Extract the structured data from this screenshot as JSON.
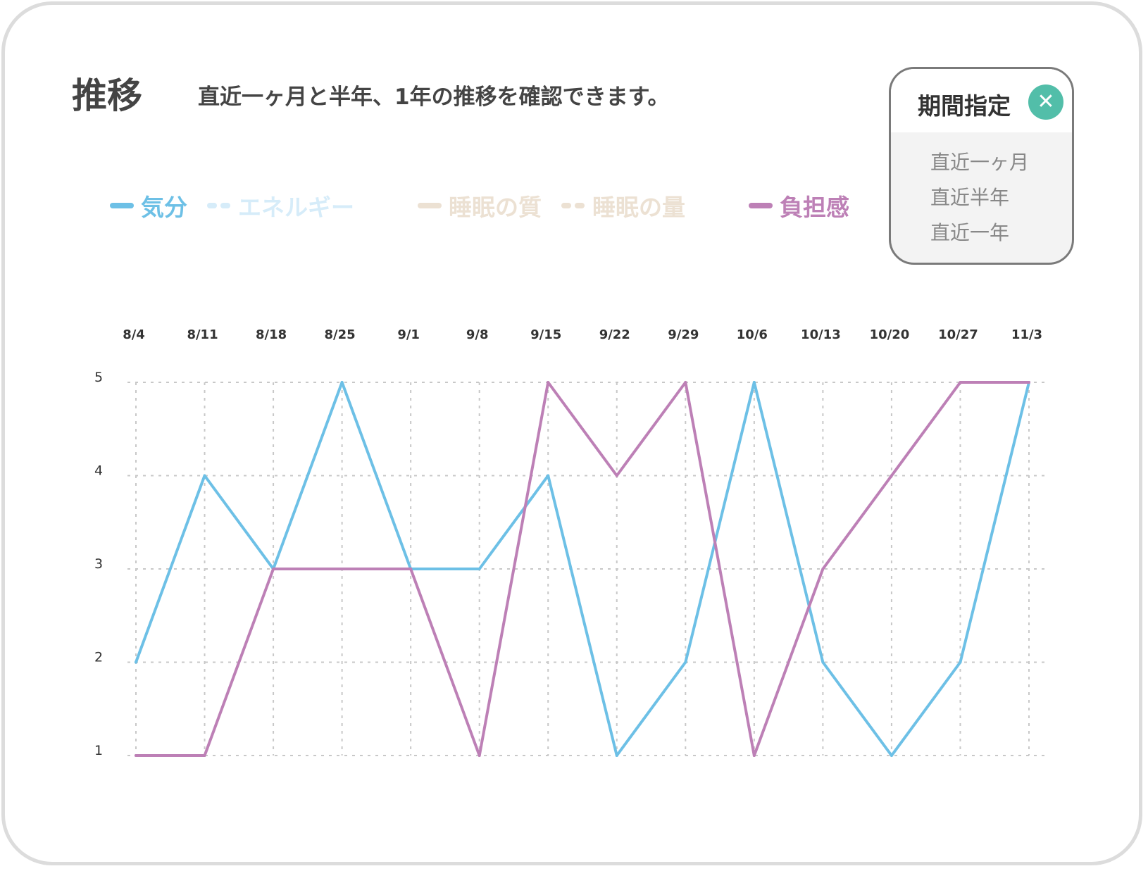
{
  "header": {
    "title": "推移",
    "subtitle": "直近一ヶ月と半年、1年の推移を確認できます。"
  },
  "legend": [
    {
      "label": "気分",
      "color": "#6dc0e6",
      "style": "solid",
      "active": true
    },
    {
      "label": "エネルギー",
      "color": "#d6ecf9",
      "style": "dotted",
      "active": false
    },
    {
      "label": "睡眠の質",
      "color": "#ece1d3",
      "style": "solid",
      "active": false
    },
    {
      "label": "睡眠の量",
      "color": "#ece1d3",
      "style": "dotted",
      "active": false
    },
    {
      "label": "負担感",
      "color": "#bd80b6",
      "style": "solid",
      "active": true
    }
  ],
  "period_popup": {
    "title": "期間指定",
    "close_icon": "close-icon",
    "close_color": "#52bea9",
    "options": [
      "直近一ヶ月",
      "直近半年",
      "直近一年"
    ]
  },
  "chart_data": {
    "type": "line",
    "categories": [
      "8/4",
      "8/11",
      "8/18",
      "8/25",
      "9/1",
      "9/8",
      "9/15",
      "9/22",
      "9/29",
      "10/6",
      "10/13",
      "10/20",
      "10/27",
      "11/3"
    ],
    "y_ticks": [
      "1",
      "2",
      "3",
      "4",
      "5"
    ],
    "ylim": [
      1,
      5
    ],
    "grid": true,
    "legend_position": "top",
    "series": [
      {
        "name": "気分",
        "color": "#6dc0e6",
        "values": [
          2,
          4,
          3,
          5,
          3,
          3,
          4,
          1,
          2,
          5,
          2,
          1,
          2,
          5
        ]
      },
      {
        "name": "負担感",
        "color": "#bd80b6",
        "values": [
          1,
          1,
          3,
          3,
          3,
          1,
          5,
          4,
          5,
          1,
          3,
          4,
          5,
          5
        ]
      }
    ]
  }
}
